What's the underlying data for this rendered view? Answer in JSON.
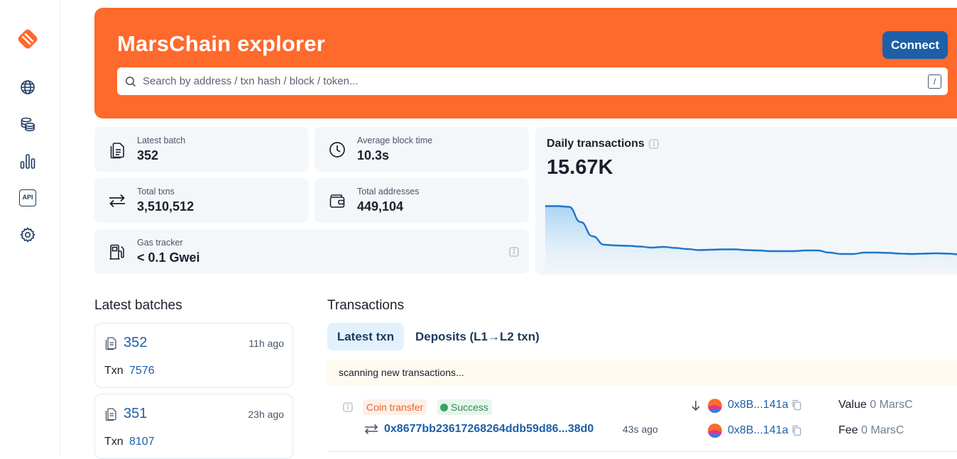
{
  "app": {
    "title": "MarsChain explorer",
    "connect_label": "Connect",
    "search_placeholder": "Search by address / txn hash / block / token...",
    "search_shortcut": "/"
  },
  "sidebar": {
    "items": [
      {
        "icon": "globe-icon"
      },
      {
        "icon": "coins-icon"
      },
      {
        "icon": "bar-chart-icon"
      },
      {
        "icon": "api-icon",
        "label": "API"
      },
      {
        "icon": "gear-icon"
      }
    ]
  },
  "stats": {
    "latest_batch": {
      "label": "Latest batch",
      "value": "352"
    },
    "avg_block_time": {
      "label": "Average block time",
      "value": "10.3s"
    },
    "total_txns": {
      "label": "Total txns",
      "value": "3,510,512"
    },
    "total_addresses": {
      "label": "Total addresses",
      "value": "449,104"
    },
    "gas_tracker": {
      "label": "Gas tracker",
      "value": "< 0.1 Gwei"
    }
  },
  "chart_data": {
    "type": "area",
    "title": "Daily transactions",
    "current_value": "15.67K",
    "values": [
      30.5,
      30.5,
      30.3,
      26,
      22,
      19.6,
      19.4,
      19.3,
      19.1,
      18.8,
      19.0,
      18.7,
      18.4,
      18.1,
      18.2,
      18.3,
      18.3,
      18.1,
      18.0,
      17.8,
      17.8,
      17.8,
      18.0,
      18.0,
      17.4,
      17.0,
      17.0,
      17.4,
      17.4,
      17.3,
      17.1,
      17.0,
      17.1,
      17.2,
      17.1,
      16.9,
      16.8
    ],
    "color": "#1e75c9"
  },
  "batches": {
    "title": "Latest batches",
    "items": [
      {
        "number": "352",
        "age": "11h ago",
        "txn_label": "Txn",
        "txn_count": "7576"
      },
      {
        "number": "351",
        "age": "23h ago",
        "txn_label": "Txn",
        "txn_count": "8107"
      }
    ]
  },
  "transactions": {
    "title": "Transactions",
    "tabs": [
      {
        "label": "Latest txn",
        "active": true
      },
      {
        "label": "Deposits (L1→L2 txn)",
        "active": false
      }
    ],
    "scanning_text": "scanning new transactions...",
    "rows": [
      {
        "type": "Coin transfer",
        "status": "Success",
        "hash": "0x8677bb23617268264ddb59d86...38d0",
        "age": "43s ago",
        "from": "0x8B...141a",
        "to": "0x8B...141a",
        "value_label": "Value",
        "value": "0 MarsC",
        "fee_label": "Fee",
        "fee": "0 MarsC"
      }
    ]
  },
  "colors": {
    "brand": "#fe692c",
    "link": "#1e5fa8",
    "success": "#38a169"
  }
}
